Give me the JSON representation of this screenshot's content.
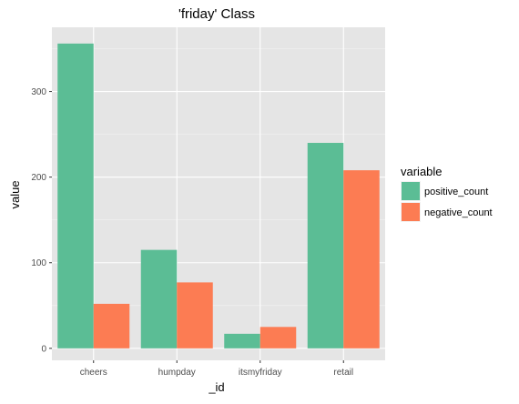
{
  "chart_data": {
    "type": "bar",
    "title": "'friday' Class",
    "xlabel": "_id",
    "ylabel": "value",
    "categories": [
      "cheers",
      "humpday",
      "itsmyfriday",
      "retail"
    ],
    "series": [
      {
        "name": "positive_count",
        "values": [
          356,
          115,
          17,
          240
        ],
        "color": "#5BBD95"
      },
      {
        "name": "negative_count",
        "values": [
          52,
          77,
          25,
          208
        ],
        "color": "#FC7C53"
      }
    ],
    "ylim": [
      -14,
      375
    ],
    "yticks": [
      0,
      100,
      200,
      300
    ],
    "grid": true,
    "panel_color": "#E5E5E5",
    "legend": {
      "title": "variable",
      "position": "right"
    }
  }
}
